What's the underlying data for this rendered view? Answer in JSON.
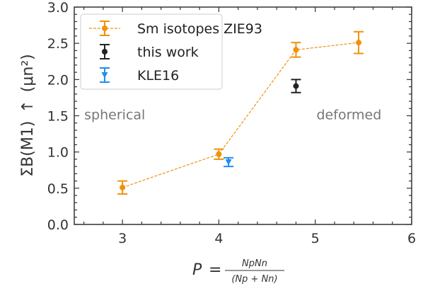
{
  "chart_data": {
    "type": "scatter",
    "title": "",
    "xlabel": {
      "prefix": "P",
      "equals": "=",
      "numerator": "NpNn",
      "denominator": "(Np + Nn)"
    },
    "ylabel": {
      "sum": "ΣB(M1)",
      "arrow": "↑",
      "unit": "(μn²)"
    },
    "xlim": [
      2.5,
      6
    ],
    "ylim": [
      0.0,
      3.0
    ],
    "xticks": [
      3,
      4,
      5,
      6
    ],
    "yticks": [
      0.0,
      0.5,
      1.0,
      1.5,
      2.0,
      2.5,
      3.0
    ],
    "xtick_labels": [
      "3",
      "4",
      "5",
      "6"
    ],
    "ytick_labels": [
      "0.0",
      "0.5",
      "1.0",
      "1.5",
      "2.0",
      "2.5",
      "3.0"
    ],
    "legend_position": "top-left",
    "grid": false,
    "annotations": [
      {
        "text": "spherical",
        "x": 2.92,
        "y": 1.45
      },
      {
        "text": "deformed",
        "x": 5.35,
        "y": 1.45
      }
    ],
    "series": [
      {
        "name": "Sm isotopes ZIE93",
        "color": "#f0920c",
        "marker": "circle",
        "line": "dashed",
        "points": [
          {
            "x": 3.0,
            "y": 0.51,
            "err": 0.09
          },
          {
            "x": 4.0,
            "y": 0.97,
            "err": 0.07
          },
          {
            "x": 4.8,
            "y": 2.41,
            "err": 0.1
          },
          {
            "x": 5.45,
            "y": 2.51,
            "err": 0.15
          }
        ]
      },
      {
        "name": "this work",
        "color": "#222222",
        "marker": "circle",
        "line": "none",
        "points": [
          {
            "x": 4.8,
            "y": 1.91,
            "err": 0.09
          }
        ]
      },
      {
        "name": "KLE16",
        "color": "#1f8ef0",
        "marker": "triangle-down",
        "line": "none",
        "points": [
          {
            "x": 4.1,
            "y": 0.86,
            "err": 0.06
          }
        ]
      }
    ]
  }
}
